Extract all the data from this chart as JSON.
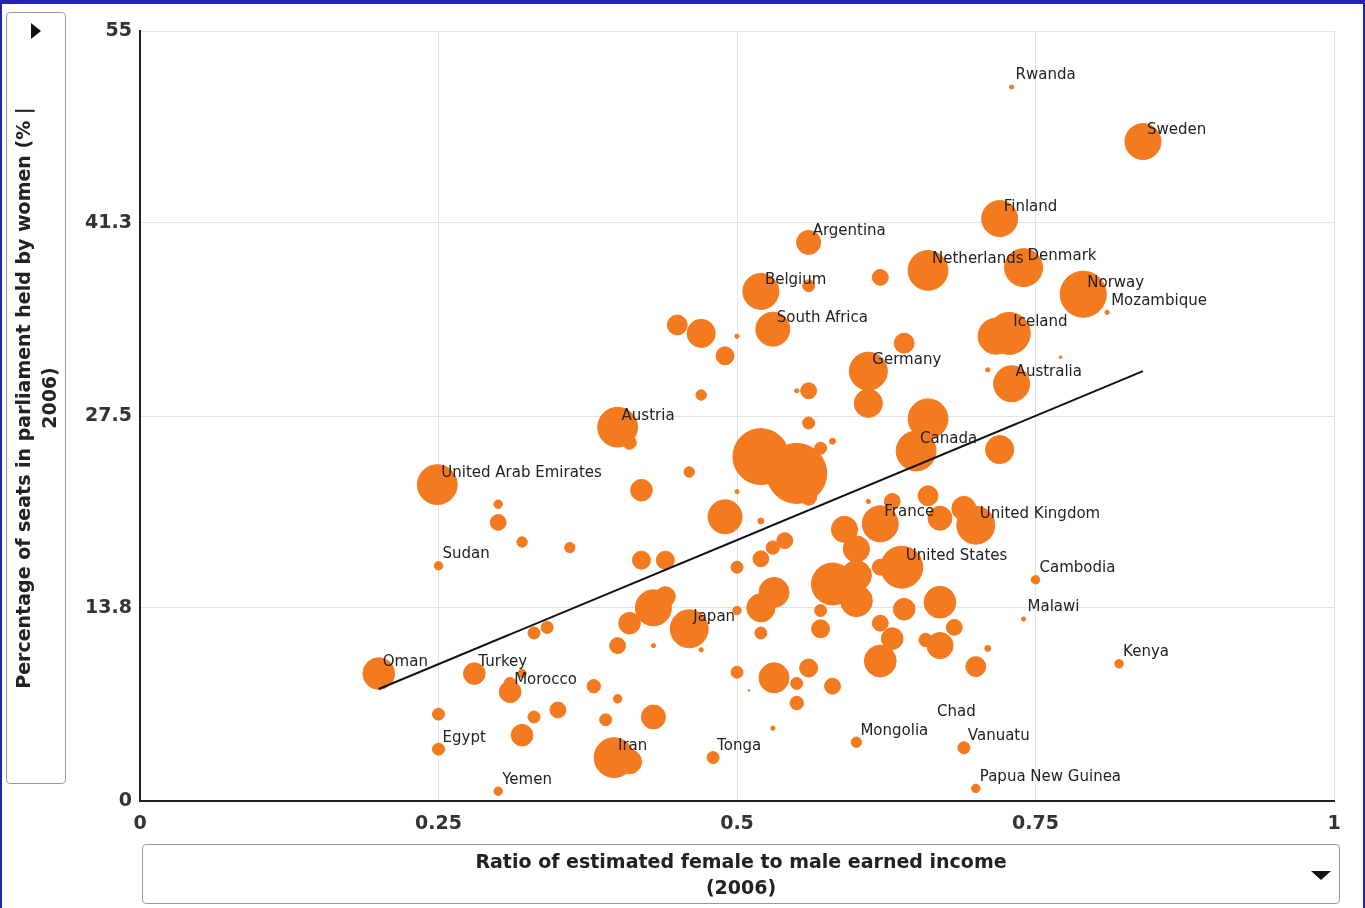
{
  "chart_data": {
    "type": "bubble",
    "xlabel": "Ratio of estimated female to male earned income (2006)",
    "ylabel": "Percentage of seats in parliament held by women (% | 2006)",
    "xlim": [
      0,
      1
    ],
    "xticks": [
      0,
      0.25,
      0.5,
      0.75,
      1
    ],
    "ylim": [
      0,
      55
    ],
    "yticks": [
      0,
      13.8,
      27.5,
      41.3,
      55
    ],
    "grid": true,
    "legend": false,
    "series": [
      {
        "type": "bubble",
        "color": "#f47a1f",
        "x": [
          0.73,
          0.84,
          0.72,
          0.56,
          0.66,
          0.74,
          0.52,
          0.79,
          0.81,
          0.53,
          0.728,
          0.61,
          0.73,
          0.4,
          0.65,
          0.249,
          0.62,
          0.7,
          0.25,
          0.638,
          0.75,
          0.74,
          0.46,
          0.82,
          0.2,
          0.28,
          0.31,
          0.25,
          0.397,
          0.48,
          0.3,
          0.6,
          0.69,
          0.7,
          0.45,
          0.47,
          0.5,
          0.49,
          0.47,
          0.41,
          0.46,
          0.42,
          0.5,
          0.62,
          0.56,
          0.64,
          0.771,
          0.56,
          0.55,
          0.61,
          0.66,
          0.56,
          0.71,
          0.717,
          0.52,
          0.55,
          0.56,
          0.57,
          0.58,
          0.72,
          0.61,
          0.59,
          0.66,
          0.69,
          0.67,
          0.63,
          0.6,
          0.58,
          0.6,
          0.6,
          0.62,
          0.64,
          0.67,
          0.62,
          0.63,
          0.62,
          0.67,
          0.682,
          0.658,
          0.71,
          0.7,
          0.531,
          0.56,
          0.55,
          0.55,
          0.58,
          0.53,
          0.531,
          0.52,
          0.52,
          0.54,
          0.53,
          0.52,
          0.5,
          0.57,
          0.57,
          0.49,
          0.52,
          0.5,
          0.3,
          0.3,
          0.32,
          0.36,
          0.42,
          0.44,
          0.43,
          0.44,
          0.41,
          0.4,
          0.341,
          0.33,
          0.43,
          0.47,
          0.5,
          0.32,
          0.31,
          0.38,
          0.4,
          0.35,
          0.33,
          0.39,
          0.43,
          0.32,
          0.25,
          0.41,
          0.51
        ],
        "values": [
          51.0,
          47.1,
          41.6,
          39.9,
          37.9,
          38.1,
          36.4,
          36.2,
          34.9,
          33.7,
          33.4,
          30.7,
          29.8,
          26.7,
          25.0,
          22.6,
          19.8,
          19.7,
          16.8,
          16.7,
          15.8,
          13.0,
          12.3,
          9.8,
          9.1,
          9.1,
          7.8,
          3.7,
          3.1,
          3.1,
          0.7,
          4.2,
          3.8,
          0.9,
          34.0,
          33.4,
          33.2,
          31.8,
          29.0,
          25.6,
          23.5,
          22.2,
          22.1,
          37.4,
          36.8,
          32.7,
          31.7,
          29.3,
          29.3,
          28.4,
          27.3,
          27.0,
          30.8,
          33.2,
          24.6,
          23.4,
          21.7,
          25.2,
          25.7,
          25.1,
          21.4,
          19.4,
          21.8,
          20.9,
          20.2,
          21.4,
          18.0,
          15.5,
          16.1,
          14.3,
          16.7,
          13.7,
          14.2,
          12.7,
          11.6,
          10.0,
          11.1,
          12.4,
          11.5,
          10.9,
          9.6,
          8.8,
          9.5,
          8.4,
          7.0,
          8.2,
          5.2,
          14.9,
          13.8,
          12.0,
          18.6,
          18.1,
          17.3,
          16.7,
          13.6,
          12.3,
          20.3,
          20.0,
          13.6,
          21.2,
          19.9,
          18.5,
          18.1,
          17.2,
          17.2,
          13.8,
          14.6,
          12.7,
          11.1,
          12.4,
          12.0,
          11.1,
          10.8,
          9.2,
          9.1,
          8.4,
          8.2,
          7.3,
          6.5,
          6.0,
          5.8,
          6.0,
          4.7,
          6.2,
          2.8,
          7.9
        ],
        "sizes": [
          0.005,
          0.36,
          0.36,
          0.16,
          0.44,
          0.4,
          0.36,
          0.59,
          0.005,
          0.32,
          0.49,
          0.4,
          0.36,
          0.44,
          0.44,
          0.44,
          0.36,
          0.4,
          0.02,
          0.49,
          0.02,
          0.005,
          0.4,
          0.02,
          0.28,
          0.13,
          0.13,
          0.04,
          0.44,
          0.04,
          0.02,
          0.03,
          0.04,
          0.02,
          0.11,
          0.22,
          0.005,
          0.09,
          0.03,
          0.05,
          0.03,
          0.13,
          0.005,
          0.07,
          0.04,
          0.11,
          0.002,
          0.07,
          0.005,
          0.22,
          0.44,
          0.04,
          0.005,
          0.36,
          0.87,
          1,
          0.07,
          0.04,
          0.01,
          0.22,
          0.005,
          0.19,
          0.11,
          0.16,
          0.16,
          0.07,
          0.19,
          0.49,
          0.25,
          0.28,
          0.07,
          0.13,
          0.28,
          0.07,
          0.13,
          0.28,
          0.19,
          0.07,
          0.05,
          0.01,
          0.11,
          0.25,
          0.09,
          0.04,
          0.05,
          0.07,
          0.005,
          0.25,
          0.22,
          0.04,
          0.07,
          0.05,
          0.07,
          0.04,
          0.04,
          0.09,
          0.32,
          0.01,
          0.02,
          0.02,
          0.07,
          0.03,
          0.03,
          0.09,
          0.09,
          0.36,
          0.11,
          0.13,
          0.07,
          0.04,
          0.04,
          0.005,
          0.005,
          0.04,
          0.02,
          0.04,
          0.05,
          0.02,
          0.07,
          0.04,
          0.04,
          0.16,
          0.13,
          0.04,
          0.16,
          0.001
        ]
      },
      {
        "type": "line",
        "color": "#111111",
        "x": [
          0.2,
          0.84
        ],
        "values": [
          8.0,
          30.7
        ]
      }
    ],
    "annotations": [
      {
        "text": "Rwanda",
        "x": 0.73,
        "y": 51.0
      },
      {
        "text": "Sweden",
        "x": 0.84,
        "y": 47.1
      },
      {
        "text": "Finland",
        "x": 0.72,
        "y": 41.6
      },
      {
        "text": "Argentina",
        "x": 0.56,
        "y": 39.9
      },
      {
        "text": "Netherlands",
        "x": 0.66,
        "y": 37.9
      },
      {
        "text": "Denmark",
        "x": 0.74,
        "y": 38.1
      },
      {
        "text": "Belgium",
        "x": 0.52,
        "y": 36.4
      },
      {
        "text": "Norway",
        "x": 0.79,
        "y": 36.2
      },
      {
        "text": "Mozambique",
        "x": 0.81,
        "y": 34.9
      },
      {
        "text": "South Africa",
        "x": 0.53,
        "y": 33.7
      },
      {
        "text": "Iceland",
        "x": 0.728,
        "y": 33.4
      },
      {
        "text": "Germany",
        "x": 0.61,
        "y": 30.7
      },
      {
        "text": "Australia",
        "x": 0.73,
        "y": 29.8
      },
      {
        "text": "Austria",
        "x": 0.4,
        "y": 26.7
      },
      {
        "text": "Canada",
        "x": 0.65,
        "y": 25.0
      },
      {
        "text": "United Arab Emirates",
        "x": 0.249,
        "y": 22.6
      },
      {
        "text": "France",
        "x": 0.62,
        "y": 19.8
      },
      {
        "text": "United Kingdom",
        "x": 0.7,
        "y": 19.7
      },
      {
        "text": "Sudan",
        "x": 0.25,
        "y": 16.8
      },
      {
        "text": "United States",
        "x": 0.638,
        "y": 16.7
      },
      {
        "text": "Cambodia",
        "x": 0.75,
        "y": 15.8
      },
      {
        "text": "Malawi",
        "x": 0.74,
        "y": 13.0
      },
      {
        "text": "Japan",
        "x": 0.46,
        "y": 12.3
      },
      {
        "text": "Kenya",
        "x": 0.82,
        "y": 9.8
      },
      {
        "text": "Oman",
        "x": 0.2,
        "y": 9.1
      },
      {
        "text": "Turkey",
        "x": 0.28,
        "y": 9.1
      },
      {
        "text": "Morocco",
        "x": 0.31,
        "y": 7.8
      },
      {
        "text": "Egypt",
        "x": 0.25,
        "y": 3.7
      },
      {
        "text": "Iran",
        "x": 0.397,
        "y": 3.1
      },
      {
        "text": "Tonga",
        "x": 0.48,
        "y": 3.1
      },
      {
        "text": "Yemen",
        "x": 0.3,
        "y": 0.7
      },
      {
        "text": "Mongolia",
        "x": 0.6,
        "y": 4.2
      },
      "Chad",
      {
        "text": "Vanuatu",
        "x": 0.69,
        "y": 3.8
      },
      {
        "text": "Papua New Guinea",
        "x": 0.7,
        "y": 0.9
      }
    ]
  }
}
